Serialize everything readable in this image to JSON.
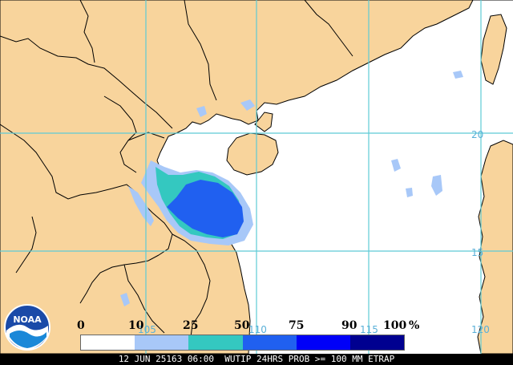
{
  "map": {
    "region": "South China Sea / Gulf of Tonkin",
    "colors": {
      "land": "#f8d49c",
      "water": "#ffffff",
      "coastline": "#000000",
      "grid": "#5ecbd5",
      "grid_label": "#5ab0d8"
    },
    "lat_labels": [
      "20",
      "15"
    ],
    "lon_labels": [
      "105",
      "110",
      "115",
      "120"
    ]
  },
  "legend": {
    "ticks": [
      "0",
      "10",
      "25",
      "50",
      "75",
      "90",
      "100"
    ],
    "unit": "%",
    "segments": [
      {
        "range": "0-10",
        "color": "#ffffff"
      },
      {
        "range": "10-25",
        "color": "#a8c8f8"
      },
      {
        "range": "25-50",
        "color": "#34c8c0"
      },
      {
        "range": "50-75",
        "color": "#2060f0"
      },
      {
        "range": "75-90",
        "color": "#0000f8"
      },
      {
        "range": "90-100",
        "color": "#000090"
      }
    ]
  },
  "logo": {
    "text": "NOAA"
  },
  "footer": {
    "text": "12 JUN 25163 06:00  WUTIP 24HRS PROB >= 100 MM ETRAP"
  }
}
